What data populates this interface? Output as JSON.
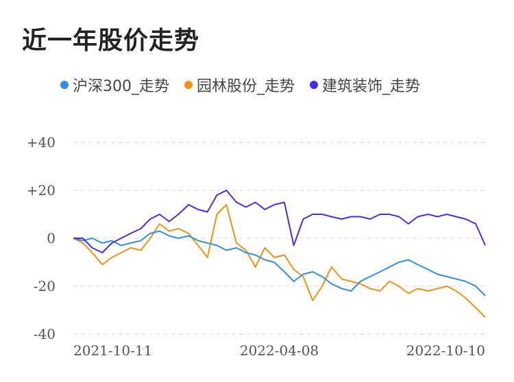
{
  "title": "近一年股价走势",
  "chart_data": {
    "type": "line",
    "x_start": "2021-10-11",
    "x_end": "2022-10-10",
    "xticks": [
      "2021-10-11",
      "2022-04-08",
      "2022-10-10"
    ],
    "yticks": [
      "+40",
      "+20",
      "0",
      "-20",
      "-40"
    ],
    "yticks_values": [
      40,
      20,
      0,
      -20,
      -40
    ],
    "ylim": [
      -40,
      40
    ],
    "grid": true,
    "legend_position": "top",
    "x": [
      0,
      14,
      28,
      43,
      57,
      71,
      85,
      100,
      114,
      128,
      142,
      156,
      171,
      185,
      199,
      213,
      227,
      242,
      256,
      270,
      284,
      298,
      313,
      327,
      341,
      355,
      369,
      383,
      398,
      412,
      426,
      440,
      455,
      469,
      483,
      497,
      511,
      526,
      540,
      554,
      568,
      582,
      597,
      611
    ],
    "series": [
      {
        "name": "沪深300_走势",
        "color": "#2f8fe8",
        "values": [
          0,
          -1,
          0,
          -2,
          -1,
          -3,
          -2,
          -1,
          2,
          3,
          1,
          0,
          1,
          -1,
          -2,
          -3,
          -5,
          -4,
          -6,
          -7,
          -9,
          -10,
          -14,
          -18,
          -15,
          -14,
          -16,
          -19,
          -21,
          -22,
          -18,
          -16,
          -14,
          -12,
          -10,
          -9,
          -11,
          -13,
          -15,
          -16,
          -17,
          -18,
          -20,
          -24
        ]
      },
      {
        "name": "园林股份_走势",
        "color": "#f0920f",
        "values": [
          0,
          -2,
          -6,
          -11,
          -8,
          -6,
          -4,
          -5,
          0,
          6,
          3,
          4,
          2,
          -3,
          -8,
          10,
          14,
          -2,
          -5,
          -12,
          -4,
          -8,
          -7,
          -13,
          -16,
          -26,
          -20,
          -12,
          -17,
          -18,
          -19,
          -21,
          -22,
          -18,
          -20,
          -23,
          -21,
          -22,
          -21,
          -20,
          -22,
          -25,
          -29,
          -33
        ]
      },
      {
        "name": "建筑装饰_走势",
        "color": "#4b2ae6",
        "values": [
          0,
          0,
          -4,
          -6,
          -2,
          0,
          2,
          4,
          8,
          10,
          7,
          10,
          14,
          12,
          11,
          18,
          20,
          15,
          13,
          15,
          12,
          14,
          15,
          -3,
          8,
          10,
          10,
          9,
          8,
          9,
          9,
          8,
          10,
          10,
          9,
          6,
          9,
          10,
          9,
          10,
          9,
          8,
          6,
          -3
        ]
      }
    ]
  }
}
